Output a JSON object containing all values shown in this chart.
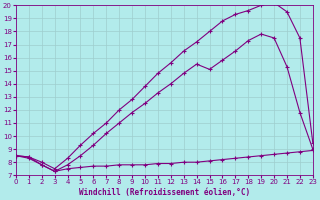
{
  "xlabel": "Windchill (Refroidissement éolien,°C)",
  "xlim": [
    0,
    23
  ],
  "ylim": [
    7,
    20
  ],
  "xticks": [
    0,
    1,
    2,
    3,
    4,
    5,
    6,
    7,
    8,
    9,
    10,
    11,
    12,
    13,
    14,
    15,
    16,
    17,
    18,
    19,
    20,
    21,
    22,
    23
  ],
  "yticks": [
    7,
    8,
    9,
    10,
    11,
    12,
    13,
    14,
    15,
    16,
    17,
    18,
    19,
    20
  ],
  "background_color": "#b2ebeb",
  "grid_color": "#9ecece",
  "line_color": "#800080",
  "line1_x": [
    0,
    1,
    2,
    3,
    4,
    5,
    6,
    7,
    8,
    9,
    10,
    11,
    12,
    13,
    14,
    15,
    16,
    17,
    18,
    19,
    20,
    21,
    22,
    23
  ],
  "line1_y": [
    8.5,
    8.4,
    8.0,
    7.5,
    8.3,
    9.3,
    10.2,
    11.0,
    12.0,
    12.8,
    13.8,
    14.8,
    15.6,
    16.5,
    17.2,
    18.0,
    18.8,
    19.3,
    19.6,
    20.0,
    20.2,
    19.5,
    17.5,
    9.5
  ],
  "line2_x": [
    0,
    1,
    2,
    3,
    4,
    5,
    6,
    7,
    8,
    9,
    10,
    11,
    12,
    13,
    14,
    15,
    16,
    17,
    18,
    19,
    20,
    21,
    22,
    23
  ],
  "line2_y": [
    8.5,
    8.4,
    7.8,
    7.3,
    7.8,
    8.5,
    9.3,
    10.2,
    11.0,
    11.8,
    12.5,
    13.3,
    14.0,
    14.8,
    15.5,
    15.1,
    15.8,
    16.5,
    17.3,
    17.8,
    17.5,
    15.3,
    11.8,
    9.0
  ],
  "line3_x": [
    0,
    1,
    2,
    3,
    4,
    5,
    6,
    7,
    8,
    9,
    10,
    11,
    12,
    13,
    14,
    15,
    16,
    17,
    18,
    19,
    20,
    21,
    22,
    23
  ],
  "line3_y": [
    8.5,
    8.3,
    7.8,
    7.3,
    7.5,
    7.6,
    7.7,
    7.7,
    7.8,
    7.8,
    7.8,
    7.9,
    7.9,
    8.0,
    8.0,
    8.1,
    8.2,
    8.3,
    8.4,
    8.5,
    8.6,
    8.7,
    8.8,
    8.9
  ]
}
